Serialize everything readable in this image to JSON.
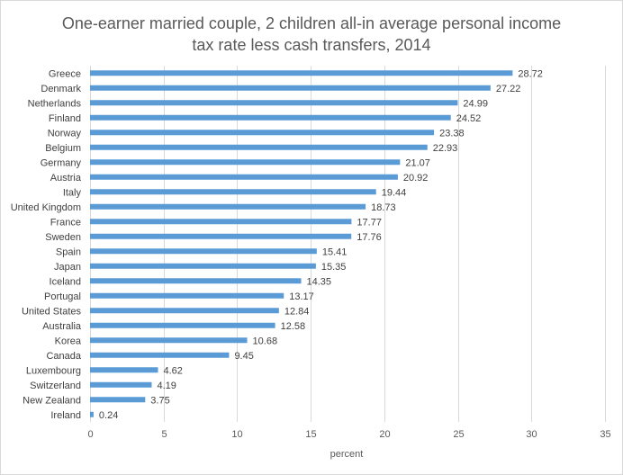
{
  "chart_data": {
    "type": "bar",
    "orientation": "horizontal",
    "title_lines": [
      "One-earner married couple, 2 children all-in average personal income",
      "tax rate less cash transfers, 2014"
    ],
    "xlabel": "percent",
    "ylabel": "",
    "xlim": [
      0,
      35
    ],
    "x_ticks": [
      0,
      5,
      10,
      15,
      20,
      25,
      30,
      35
    ],
    "grid": true,
    "legend": "none",
    "bar_color": "#5b9bd5",
    "categories": [
      "Greece",
      "Denmark",
      "Netherlands",
      "Finland",
      "Norway",
      "Belgium",
      "Germany",
      "Austria",
      "Italy",
      "United Kingdom",
      "France",
      "Sweden",
      "Spain",
      "Japan",
      "Iceland",
      "Portugal",
      "United States",
      "Australia",
      "Korea",
      "Canada",
      "Luxembourg",
      "Switzerland",
      "New Zealand",
      "Ireland"
    ],
    "values": [
      28.72,
      27.22,
      24.99,
      24.52,
      23.38,
      22.93,
      21.07,
      20.92,
      19.44,
      18.73,
      17.77,
      17.76,
      15.41,
      15.35,
      14.35,
      13.17,
      12.84,
      12.58,
      10.68,
      9.45,
      4.62,
      4.19,
      3.75,
      0.24
    ],
    "value_labels": [
      "28.72",
      "27.22",
      "24.99",
      "24.52",
      "23.38",
      "22.93",
      "21.07",
      "20.92",
      "19.44",
      "18.73",
      "17.77",
      "17.76",
      "15.41",
      "15.35",
      "14.35",
      "13.17",
      "12.84",
      "12.58",
      "10.68",
      "9.45",
      "4.62",
      "4.19",
      "3.75",
      "0.24"
    ]
  }
}
